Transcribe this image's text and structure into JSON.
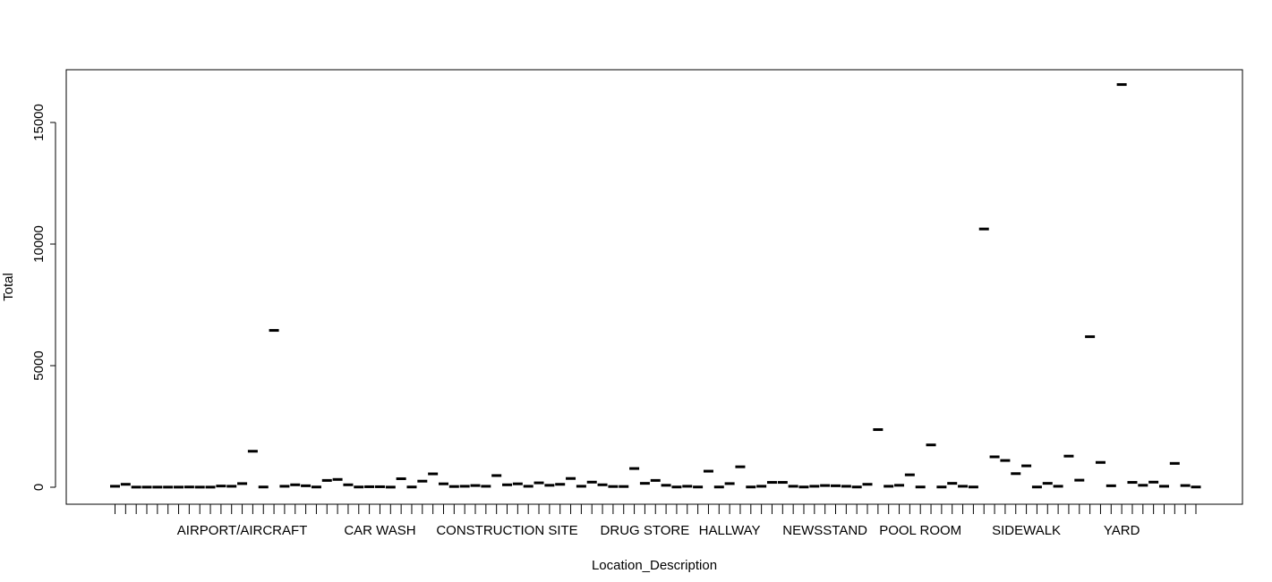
{
  "chart_data": {
    "type": "boxplot",
    "title": "",
    "xlabel": "Location_Description",
    "ylabel": "Total",
    "ylim": [
      -650,
      17200
    ],
    "y_ticks": [
      0,
      5000,
      10000,
      15000
    ],
    "grid": false,
    "legend": "none",
    "x_labels_shown": [
      {
        "index": 12,
        "label": "AIRPORT/AIRCRAFT"
      },
      {
        "index": 25,
        "label": "CAR WASH"
      },
      {
        "index": 37,
        "label": "CONSTRUCTION SITE"
      },
      {
        "index": 50,
        "label": "DRUG STORE"
      },
      {
        "index": 58,
        "label": "HALLWAY"
      },
      {
        "index": 67,
        "label": "NEWSSTAND"
      },
      {
        "index": 76,
        "label": "POOL ROOM"
      },
      {
        "index": 86,
        "label": "SIDEWALK"
      },
      {
        "index": 95,
        "label": "YARD"
      }
    ],
    "values": [
      40,
      120,
      5,
      5,
      5,
      5,
      5,
      10,
      5,
      5,
      50,
      40,
      150,
      1480,
      10,
      6450,
      40,
      100,
      60,
      10,
      280,
      320,
      100,
      10,
      20,
      20,
      5,
      350,
      10,
      250,
      550,
      140,
      30,
      40,
      70,
      40,
      480,
      100,
      140,
      40,
      180,
      80,
      120,
      360,
      40,
      210,
      100,
      30,
      30,
      770,
      160,
      280,
      80,
      10,
      40,
      10,
      660,
      10,
      150,
      840,
      10,
      40,
      200,
      200,
      40,
      10,
      40,
      70,
      60,
      40,
      10,
      120,
      2370,
      40,
      80,
      510,
      10,
      1740,
      10,
      160,
      40,
      10,
      10620,
      1250,
      1100,
      560,
      880,
      10,
      160,
      40,
      1280,
      290,
      6190,
      1020,
      60,
      16560,
      200,
      80,
      210,
      40,
      980,
      70,
      10
    ]
  }
}
